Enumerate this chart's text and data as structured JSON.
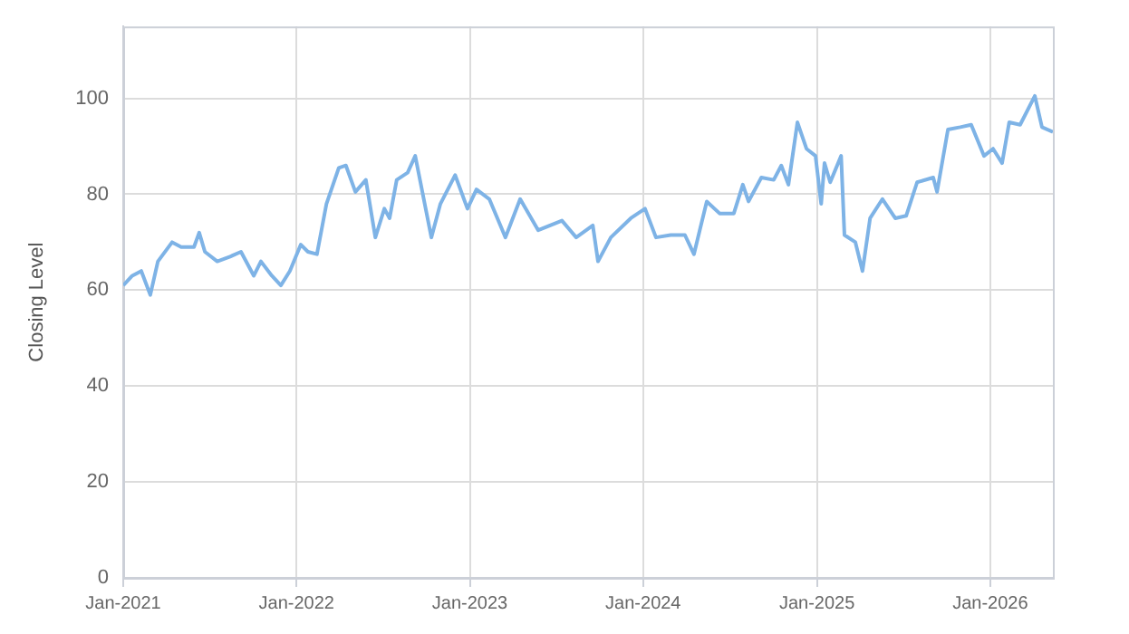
{
  "chart_data": {
    "type": "line",
    "ylabel": "Closing Level",
    "x": [
      "2021-01-01",
      "2021-01-20",
      "2021-02-08",
      "2021-02-27",
      "2021-03-15",
      "2021-04-14",
      "2021-05-03",
      "2021-05-30",
      "2021-06-10",
      "2021-06-22",
      "2021-07-18",
      "2021-08-14",
      "2021-09-06",
      "2021-10-03",
      "2021-10-18",
      "2021-11-10",
      "2021-11-29",
      "2021-12-18",
      "2022-01-10",
      "2022-01-25",
      "2022-02-13",
      "2022-03-05",
      "2022-03-31",
      "2022-04-15",
      "2022-05-05",
      "2022-05-27",
      "2022-06-16",
      "2022-07-05",
      "2022-07-16",
      "2022-07-31",
      "2022-08-23",
      "2022-09-08",
      "2022-09-30",
      "2022-10-12",
      "2022-10-31",
      "2022-12-01",
      "2022-12-27",
      "2023-01-15",
      "2023-02-11",
      "2023-03-17",
      "2023-04-17",
      "2023-05-25",
      "2023-07-14",
      "2023-08-13",
      "2023-09-17",
      "2023-09-28",
      "2023-10-25",
      "2023-12-06",
      "2024-01-05",
      "2024-01-28",
      "2024-02-28",
      "2024-03-29",
      "2024-04-17",
      "2024-05-14",
      "2024-06-10",
      "2024-07-10",
      "2024-07-29",
      "2024-08-10",
      "2024-09-06",
      "2024-10-02",
      "2024-10-18",
      "2024-11-02",
      "2024-11-21",
      "2024-12-10",
      "2024-12-29",
      "2025-01-10",
      "2025-01-17",
      "2025-01-29",
      "2025-02-21",
      "2025-02-28",
      "2025-03-23",
      "2025-04-07",
      "2025-04-23",
      "2025-05-19",
      "2025-06-15",
      "2025-07-08",
      "2025-07-31",
      "2025-09-03",
      "2025-09-11",
      "2025-10-04",
      "2025-10-30",
      "2025-11-22",
      "2025-12-19",
      "2026-01-07",
      "2026-01-26",
      "2026-02-10",
      "2026-03-05",
      "2026-04-05",
      "2026-04-20",
      "2026-05-13"
    ],
    "series": [
      {
        "color": "#7eb3e6",
        "values": [
          61,
          63,
          64,
          59,
          66,
          70,
          69,
          69,
          72,
          68,
          66,
          67,
          68,
          63,
          66,
          63,
          61,
          64,
          69.5,
          68,
          67.5,
          78,
          85.5,
          86,
          80.5,
          83,
          71,
          77,
          75,
          83,
          84.5,
          88,
          77,
          71,
          78,
          84,
          77,
          81,
          79,
          71,
          79,
          72.5,
          74.5,
          71,
          73.5,
          66,
          71,
          75,
          77,
          71,
          71.5,
          71.5,
          67.5,
          78.5,
          76,
          76,
          82,
          78.5,
          83.5,
          83,
          86,
          82,
          95,
          89.5,
          88,
          78,
          86.5,
          82.5,
          88,
          71.5,
          70,
          64,
          75,
          79,
          75,
          75.5,
          82.5,
          83.5,
          80.5,
          93.5,
          94,
          94.5,
          88,
          89.5,
          86.5,
          95,
          94.5,
          100.5,
          94,
          93
        ]
      }
    ],
    "xlim": [
      "2021-01-01",
      "2026-05-13"
    ],
    "xticks": [
      {
        "value": "2021-01-01",
        "label": "Jan-2021"
      },
      {
        "value": "2022-01-01",
        "label": "Jan-2022"
      },
      {
        "value": "2023-01-01",
        "label": "Jan-2023"
      },
      {
        "value": "2024-01-01",
        "label": "Jan-2024"
      },
      {
        "value": "2025-01-01",
        "label": "Jan-2025"
      },
      {
        "value": "2026-01-01",
        "label": "Jan-2026"
      }
    ],
    "ylim": [
      0,
      115
    ],
    "yticks": [
      0,
      20,
      40,
      60,
      80,
      100
    ],
    "grid": true,
    "legend": false,
    "marker": "none",
    "line_style": "solid"
  }
}
